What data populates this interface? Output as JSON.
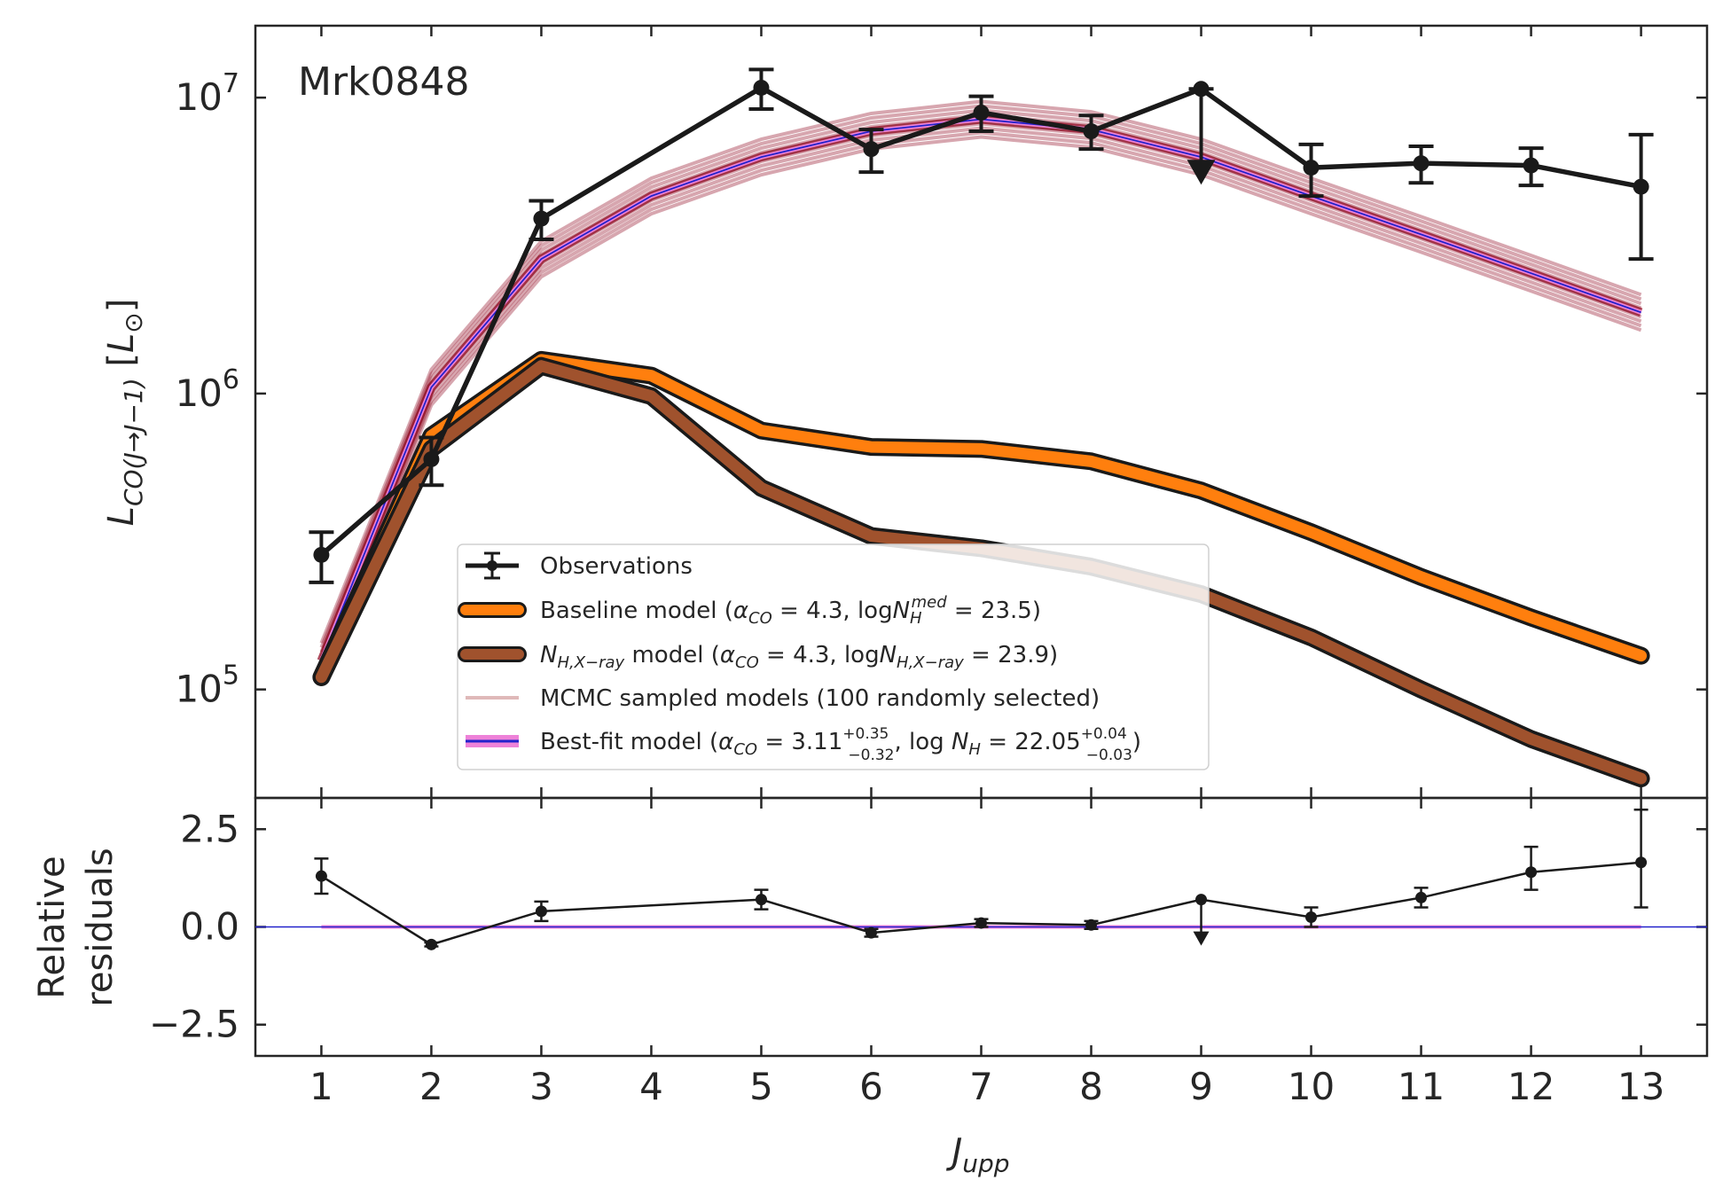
{
  "chart_data": [
    {
      "type": "line",
      "panel": "main",
      "title": "",
      "annotation": "Mrk0848",
      "ylabel": "L_{CO(J→J−1)} [L_⊙]",
      "yscale": "log",
      "ylim": [
        43000,
        17500000
      ],
      "xlim": [
        0.4,
        13.6
      ],
      "ytick_labels": [
        {
          "value": 100000,
          "base": "10",
          "exp": "5"
        },
        {
          "value": 1000000,
          "base": "10",
          "exp": "6"
        },
        {
          "value": 10000000,
          "base": "10",
          "exp": "7"
        }
      ],
      "x": [
        1,
        2,
        3,
        4,
        5,
        6,
        7,
        8,
        9,
        10,
        11,
        12,
        13
      ],
      "series": [
        {
          "name": "Observations",
          "color": "#1a1a1a",
          "x": [
            1,
            2,
            3,
            5,
            6,
            7,
            8,
            9,
            10,
            11,
            12,
            13
          ],
          "values": [
            285000,
            600000,
            3900000,
            10800000,
            6700000,
            8900000,
            7700000,
            10700000,
            5800000,
            6000000,
            5900000,
            5000000
          ],
          "err_low": [
            55000,
            110000,
            580000,
            1650000,
            1100000,
            1200000,
            1000000,
            0,
            1150000,
            850000,
            850000,
            2150000
          ],
          "err_high": [
            55000,
            110000,
            580000,
            1650000,
            1100000,
            1200000,
            1000000,
            0,
            1150000,
            850000,
            850000,
            2500000
          ],
          "upper_limit_x": [
            9
          ]
        },
        {
          "name": "Baseline model",
          "color": "#ff7f0e",
          "values": [
            110000,
            720000,
            1300000,
            1150000,
            750000,
            660000,
            650000,
            590000,
            470000,
            340000,
            240000,
            175000,
            130000
          ]
        },
        {
          "name": "N_H,X-ray model",
          "color": "#a0522d",
          "values": [
            110000,
            650000,
            1240000,
            980000,
            480000,
            330000,
            300000,
            260000,
            210000,
            150000,
            100000,
            68000,
            50000
          ]
        },
        {
          "name": "MCMC sampled models (100 randomly selected)",
          "color": "#8b0019",
          "values": [
            125000,
            1050000,
            2850000,
            4650000,
            6300000,
            7700000,
            8450000,
            7800000,
            6300000,
            4650000,
            3450000,
            2550000,
            1880000
          ]
        },
        {
          "name": "Best-fit model",
          "color": "#2222cc",
          "band_color": "#ee82d8",
          "values": [
            125000,
            1050000,
            2850000,
            4650000,
            6300000,
            7700000,
            8450000,
            7800000,
            6300000,
            4650000,
            3450000,
            2550000,
            1880000
          ]
        }
      ],
      "legend": {
        "placement": "lower-center",
        "entries": [
          {
            "key": "obs",
            "text": "Observations"
          },
          {
            "key": "baseline",
            "pre": "Baseline model (",
            "a": "α",
            "asub": "CO",
            "mid": " = 4.3, log",
            "n": "N",
            "nsub": "H",
            "nsup": "med",
            "post": " = 23.5)"
          },
          {
            "key": "xray",
            "n": "N",
            "nsub": "H,X−ray",
            "pre": " model (",
            "a": "α",
            "asub": "CO",
            "mid": " = 4.3, log",
            "n2": "N",
            "n2sub": "H,X−ray",
            "post": " = 23.9)"
          },
          {
            "key": "mcmc",
            "text": "MCMC sampled models (100 randomly selected)"
          },
          {
            "key": "best",
            "pre": "Best-fit model (",
            "a": "α",
            "asub": "CO",
            "aval": " = 3.11",
            "asup": "+0.35",
            "asubval": "−0.32",
            "mid": ", log ",
            "n": "N",
            "nsub": "H",
            "nval": " = 22.05",
            "nsup": "+0.04",
            "nsubval": "−0.03",
            "post": ")"
          }
        ]
      }
    },
    {
      "type": "line",
      "panel": "residuals",
      "ylabel": "Relative residuals",
      "ylabel_lines": [
        "Relative",
        "residuals"
      ],
      "xlabel": "J_upp",
      "ylim": [
        -3.3,
        3.3
      ],
      "yticks": [
        2.5,
        0.0,
        -2.5
      ],
      "ytick_labels": [
        "2.5",
        "0.0",
        "−2.5"
      ],
      "xticks": [
        1,
        2,
        3,
        4,
        5,
        6,
        7,
        8,
        9,
        10,
        11,
        12,
        13
      ],
      "xtick_labels": [
        "1",
        "2",
        "3",
        "4",
        "5",
        "6",
        "7",
        "8",
        "9",
        "10",
        "11",
        "12",
        "13"
      ],
      "zero_line_color": "#2222cc",
      "series": [
        {
          "name": "Residuals",
          "color": "#1a1a1a",
          "x": [
            1,
            2,
            3,
            5,
            6,
            7,
            8,
            9,
            10,
            11,
            12,
            13
          ],
          "values": [
            1.3,
            -0.45,
            0.4,
            0.7,
            -0.15,
            0.1,
            0.05,
            0.7,
            0.25,
            0.75,
            1.4,
            1.65
          ],
          "err_low": [
            0.45,
            0.05,
            0.25,
            0.25,
            0.1,
            0.1,
            0.1,
            0.0,
            0.25,
            0.25,
            0.45,
            1.15
          ],
          "err_high": [
            0.45,
            0.05,
            0.25,
            0.25,
            0.1,
            0.1,
            0.1,
            0.0,
            0.25,
            0.25,
            0.65,
            1.35
          ],
          "upper_limit_x": [
            9
          ]
        }
      ]
    }
  ]
}
